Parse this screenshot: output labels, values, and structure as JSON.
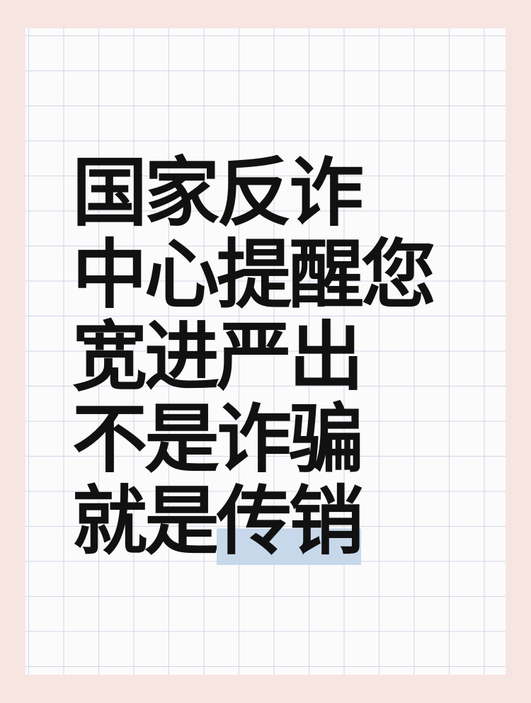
{
  "colors": {
    "page_background": "#f7e5e2",
    "paper": "#fbfbfc",
    "grid_line": "#cdd0de",
    "text": "#111111",
    "highlight": "#c7d8ea"
  },
  "message": {
    "lines": [
      {
        "plain": "国家反诈",
        "highlight": ""
      },
      {
        "plain": "中心提醒您",
        "highlight": ""
      },
      {
        "plain": "宽进严出",
        "highlight": ""
      },
      {
        "plain": "不是诈骗",
        "highlight": ""
      },
      {
        "plain": "就是",
        "highlight": "传销"
      }
    ]
  }
}
